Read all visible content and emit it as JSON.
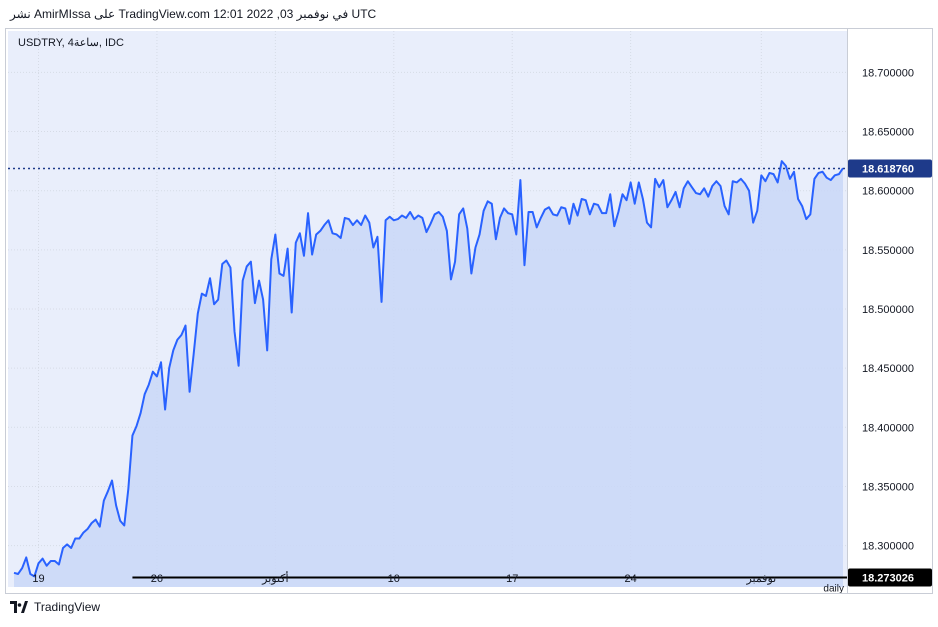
{
  "header": {
    "publish_text": "نشر AmirMIssa على TradingView.com في نوفمبر 03, 2022 12:01 UTC"
  },
  "symbol_label": "USDTRY, 4ساعة, IDC",
  "current_price": "18.618760",
  "level_label": "18.273026",
  "daily_label": "daily",
  "footer": {
    "brand": "TradingView"
  },
  "colors": {
    "plot_bg": "#e9eefb",
    "line": "#2962ff",
    "area_fill": "#c9d7f7",
    "price_tag_bg": "#1e3a8a",
    "level_tag_bg": "#000000",
    "grid": "#d6dbe6"
  },
  "chart_data": {
    "type": "area",
    "title": "USDTRY, 4ساعة, IDC",
    "xlabel": "",
    "ylabel": "",
    "y_axis_side": "right",
    "ylim": [
      18.265,
      18.735
    ],
    "y_ticks": [
      {
        "value": 18.7,
        "label": "18.700000"
      },
      {
        "value": 18.65,
        "label": "18.650000"
      },
      {
        "value": 18.6,
        "label": "18.600000"
      },
      {
        "value": 18.55,
        "label": "18.550000"
      },
      {
        "value": 18.5,
        "label": "18.500000"
      },
      {
        "value": 18.45,
        "label": "18.450000"
      },
      {
        "value": 18.4,
        "label": "18.400000"
      },
      {
        "value": 18.35,
        "label": "18.350000"
      },
      {
        "value": 18.3,
        "label": "18.300000"
      }
    ],
    "x_ticks": [
      {
        "index": 6,
        "label": "19"
      },
      {
        "index": 35,
        "label": "26"
      },
      {
        "index": 64,
        "label": "أكتوبر"
      },
      {
        "index": 93,
        "label": "10"
      },
      {
        "index": 122,
        "label": "17"
      },
      {
        "index": 151,
        "label": "24"
      },
      {
        "index": 183,
        "label": "نوفمبر"
      }
    ],
    "series": [
      {
        "values": [
          18.277,
          18.276,
          18.281,
          18.29,
          18.276,
          18.274,
          18.285,
          18.289,
          18.283,
          18.287,
          18.287,
          18.284,
          18.298,
          18.301,
          18.298,
          18.306,
          18.306,
          18.311,
          18.314,
          18.319,
          18.322,
          18.316,
          18.338,
          18.346,
          18.355,
          18.334,
          18.321,
          18.317,
          18.348,
          18.393,
          18.401,
          18.412,
          18.428,
          18.436,
          18.447,
          18.443,
          18.455,
          18.415,
          18.45,
          18.465,
          18.474,
          18.478,
          18.486,
          18.43,
          18.462,
          18.496,
          18.513,
          18.511,
          18.526,
          18.504,
          18.508,
          18.538,
          18.541,
          18.535,
          18.481,
          18.452,
          18.524,
          18.536,
          18.54,
          18.505,
          18.524,
          18.508,
          18.465,
          18.542,
          18.563,
          18.53,
          18.528,
          18.551,
          18.497,
          18.556,
          18.564,
          18.545,
          18.581,
          18.546,
          18.563,
          18.566,
          18.571,
          18.575,
          18.564,
          18.563,
          18.56,
          18.577,
          18.576,
          18.571,
          18.575,
          18.571,
          18.579,
          18.573,
          18.552,
          18.561,
          18.506,
          18.575,
          18.578,
          18.575,
          18.576,
          18.579,
          18.577,
          18.582,
          18.576,
          18.579,
          18.577,
          18.565,
          18.572,
          18.58,
          18.582,
          18.578,
          18.566,
          18.525,
          18.54,
          18.58,
          18.585,
          18.568,
          18.53,
          18.552,
          18.563,
          18.583,
          18.591,
          18.589,
          18.559,
          18.577,
          18.585,
          18.581,
          18.58,
          18.563,
          18.609,
          18.537,
          18.582,
          18.582,
          18.569,
          18.577,
          18.584,
          18.586,
          18.58,
          18.579,
          18.586,
          18.585,
          18.572,
          18.589,
          18.579,
          18.593,
          18.592,
          18.58,
          18.589,
          18.588,
          18.581,
          18.581,
          18.597,
          18.57,
          18.582,
          18.597,
          18.592,
          18.607,
          18.589,
          18.607,
          18.593,
          18.573,
          18.569,
          18.61,
          18.603,
          18.609,
          18.586,
          18.592,
          18.599,
          18.586,
          18.602,
          18.608,
          18.603,
          18.598,
          18.597,
          18.602,
          18.595,
          18.604,
          18.608,
          18.604,
          18.587,
          18.58,
          18.608,
          18.607,
          18.61,
          18.606,
          18.6,
          18.573,
          18.583,
          18.613,
          18.608,
          18.615,
          18.614,
          18.607,
          18.625,
          18.621,
          18.61,
          18.616,
          18.593,
          18.587,
          18.576,
          18.58,
          18.61,
          18.615,
          18.616,
          18.611,
          18.609,
          18.613,
          18.614,
          18.619
        ]
      }
    ],
    "current_value": 18.61876,
    "horizontal_level": {
      "value": 18.273026,
      "start_index": 29
    },
    "grid": true,
    "legend": "none"
  }
}
